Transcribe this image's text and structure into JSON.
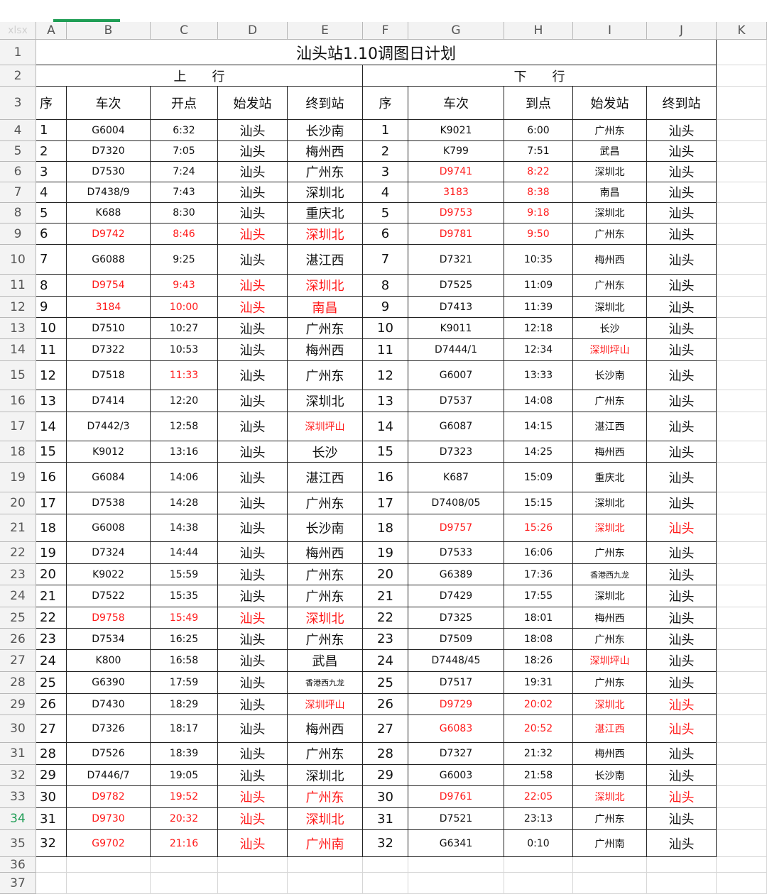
{
  "sheet": {
    "corner_label": "xlsx",
    "columns": [
      "A",
      "B",
      "C",
      "D",
      "E",
      "F",
      "G",
      "H",
      "I",
      "J",
      "K"
    ],
    "title": "汕头站1.10调图日计划",
    "up_label": "上　　行",
    "down_label": "下　　行",
    "headers_up": [
      "序",
      "车次",
      "开点",
      "始发站",
      "终到站"
    ],
    "headers_down": [
      "序",
      "车次",
      "到点",
      "始发站",
      "终到站"
    ],
    "highlight_color": "#ff1a1a",
    "active_row_number_color": "#1f9d55",
    "active_row_number": 34,
    "rows": [
      {
        "n": 4,
        "c": [
          "1",
          "G6004",
          "6:32",
          "汕头",
          "长沙南",
          "1",
          "K9021",
          "6:00",
          "广州东",
          "汕头"
        ],
        "red": []
      },
      {
        "n": 5,
        "c": [
          "2",
          "D7320",
          "7:05",
          "汕头",
          "梅州西",
          "2",
          "K799",
          "7:51",
          "武昌",
          "汕头"
        ],
        "red": []
      },
      {
        "n": 6,
        "c": [
          "3",
          "D7530",
          "7:24",
          "汕头",
          "广州东",
          "3",
          "D9741",
          "8:22",
          "深圳北",
          "汕头"
        ],
        "red": [
          6,
          7
        ]
      },
      {
        "n": 7,
        "c": [
          "4",
          "D7438/9",
          "7:43",
          "汕头",
          "深圳北",
          "4",
          "3183",
          "8:38",
          "南昌",
          "汕头"
        ],
        "red": [
          6,
          7
        ]
      },
      {
        "n": 8,
        "c": [
          "5",
          "K688",
          "8:30",
          "汕头",
          "重庆北",
          "5",
          "D9753",
          "9:18",
          "深圳北",
          "汕头"
        ],
        "red": [
          6,
          7
        ]
      },
      {
        "n": 9,
        "c": [
          "6",
          "D9742",
          "8:46",
          "汕头",
          "深圳北",
          "6",
          "D9781",
          "9:50",
          "广州东",
          "汕头"
        ],
        "red": [
          1,
          2,
          3,
          4,
          6,
          7
        ]
      },
      {
        "n": 10,
        "c": [
          "7",
          "G6088",
          "9:25",
          "汕头",
          "湛江西",
          "7",
          "D7321",
          "10:35",
          "梅州西",
          "汕头"
        ],
        "red": []
      },
      {
        "n": 11,
        "c": [
          "8",
          "D9754",
          "9:43",
          "汕头",
          "深圳北",
          "8",
          "D7525",
          "11:09",
          "广州东",
          "汕头"
        ],
        "red": [
          1,
          2,
          3,
          4
        ]
      },
      {
        "n": 12,
        "c": [
          "9",
          "3184",
          "10:00",
          "汕头",
          "南昌",
          "9",
          "D7413",
          "11:39",
          "深圳北",
          "汕头"
        ],
        "red": [
          1,
          2,
          3,
          4
        ]
      },
      {
        "n": 13,
        "c": [
          "10",
          "D7510",
          "10:27",
          "汕头",
          "广州东",
          "10",
          "K9011",
          "12:18",
          "长沙",
          "汕头"
        ],
        "red": []
      },
      {
        "n": 14,
        "c": [
          "11",
          "D7322",
          "10:53",
          "汕头",
          "梅州西",
          "11",
          "D7444/1",
          "12:34",
          "深圳坪山",
          "汕头"
        ],
        "red": [
          8
        ]
      },
      {
        "n": 15,
        "c": [
          "12",
          "D7518",
          "11:33",
          "汕头",
          "广州东",
          "12",
          "G6007",
          "13:33",
          "长沙南",
          "汕头"
        ],
        "red": [
          2
        ]
      },
      {
        "n": 16,
        "c": [
          "13",
          "D7414",
          "12:20",
          "汕头",
          "深圳北",
          "13",
          "D7537",
          "14:08",
          "广州东",
          "汕头"
        ],
        "red": []
      },
      {
        "n": 17,
        "c": [
          "14",
          "D7442/3",
          "12:58",
          "汕头",
          "深圳坪山",
          "14",
          "G6087",
          "14:15",
          "湛江西",
          "汕头"
        ],
        "red": [
          4
        ]
      },
      {
        "n": 18,
        "c": [
          "15",
          "K9012",
          "13:16",
          "汕头",
          "长沙",
          "15",
          "D7323",
          "14:25",
          "梅州西",
          "汕头"
        ],
        "red": []
      },
      {
        "n": 19,
        "c": [
          "16",
          "G6084",
          "14:06",
          "汕头",
          "湛江西",
          "16",
          "K687",
          "15:09",
          "重庆北",
          "汕头"
        ],
        "red": []
      },
      {
        "n": 20,
        "c": [
          "17",
          "D7538",
          "14:28",
          "汕头",
          "广州东",
          "17",
          "D7408/05",
          "15:15",
          "深圳北",
          "汕头"
        ],
        "red": []
      },
      {
        "n": 21,
        "c": [
          "18",
          "G6008",
          "14:38",
          "汕头",
          "长沙南",
          "18",
          "D9757",
          "15:26",
          "深圳北",
          "汕头"
        ],
        "red": [
          6,
          7,
          8,
          9
        ]
      },
      {
        "n": 22,
        "c": [
          "19",
          "D7324",
          "14:44",
          "汕头",
          "梅州西",
          "19",
          "D7533",
          "16:06",
          "广州东",
          "汕头"
        ],
        "red": []
      },
      {
        "n": 23,
        "c": [
          "20",
          "K9022",
          "15:59",
          "汕头",
          "广州东",
          "20",
          "G6389",
          "17:36",
          "香港西九龙",
          "汕头"
        ],
        "red": []
      },
      {
        "n": 24,
        "c": [
          "21",
          "D7522",
          "15:35",
          "汕头",
          "广州东",
          "21",
          "D7429",
          "17:55",
          "深圳北",
          "汕头"
        ],
        "red": []
      },
      {
        "n": 25,
        "c": [
          "22",
          "D9758",
          "15:49",
          "汕头",
          "深圳北",
          "22",
          "D7325",
          "18:01",
          "梅州西",
          "汕头"
        ],
        "red": [
          1,
          2,
          3,
          4
        ]
      },
      {
        "n": 26,
        "c": [
          "23",
          "D7534",
          "16:25",
          "汕头",
          "广州东",
          "23",
          "D7509",
          "18:08",
          "广州东",
          "汕头"
        ],
        "red": []
      },
      {
        "n": 27,
        "c": [
          "24",
          "K800",
          "16:58",
          "汕头",
          "武昌",
          "24",
          "D7448/45",
          "18:26",
          "深圳坪山",
          "汕头"
        ],
        "red": [
          8
        ]
      },
      {
        "n": 28,
        "c": [
          "25",
          "G6390",
          "17:59",
          "汕头",
          "香港西九龙",
          "25",
          "D7517",
          "19:31",
          "广州东",
          "汕头"
        ],
        "red": []
      },
      {
        "n": 29,
        "c": [
          "26",
          "D7430",
          "18:29",
          "汕头",
          "深圳坪山",
          "26",
          "D9729",
          "20:02",
          "深圳北",
          "汕头"
        ],
        "red": [
          4,
          6,
          7,
          8,
          9
        ]
      },
      {
        "n": 30,
        "c": [
          "27",
          "D7326",
          "18:17",
          "汕头",
          "梅州西",
          "27",
          "G6083",
          "20:52",
          "湛江西",
          "汕头"
        ],
        "red": [
          6,
          7,
          8,
          9
        ]
      },
      {
        "n": 31,
        "c": [
          "28",
          "D7526",
          "18:39",
          "汕头",
          "广州东",
          "28",
          "D7327",
          "21:32",
          "梅州西",
          "汕头"
        ],
        "red": []
      },
      {
        "n": 32,
        "c": [
          "29",
          "D7446/7",
          "19:05",
          "汕头",
          "深圳北",
          "29",
          "G6003",
          "21:58",
          "长沙南",
          "汕头"
        ],
        "red": []
      },
      {
        "n": 33,
        "c": [
          "30",
          "D9782",
          "19:52",
          "汕头",
          "广州东",
          "30",
          "D9761",
          "22:05",
          "深圳北",
          "汕头"
        ],
        "red": [
          1,
          2,
          3,
          4,
          6,
          7,
          8,
          9
        ]
      },
      {
        "n": 34,
        "c": [
          "31",
          "D9730",
          "20:32",
          "汕头",
          "深圳北",
          "31",
          "D7521",
          "23:13",
          "广州东",
          "汕头"
        ],
        "red": [
          1,
          2,
          3,
          4
        ]
      },
      {
        "n": 35,
        "c": [
          "32",
          "G9702",
          "21:16",
          "汕头",
          "广州南",
          "32",
          "G6341",
          "0:10",
          "广州南",
          "汕头"
        ],
        "red": [
          1,
          2,
          3,
          4
        ]
      }
    ]
  }
}
